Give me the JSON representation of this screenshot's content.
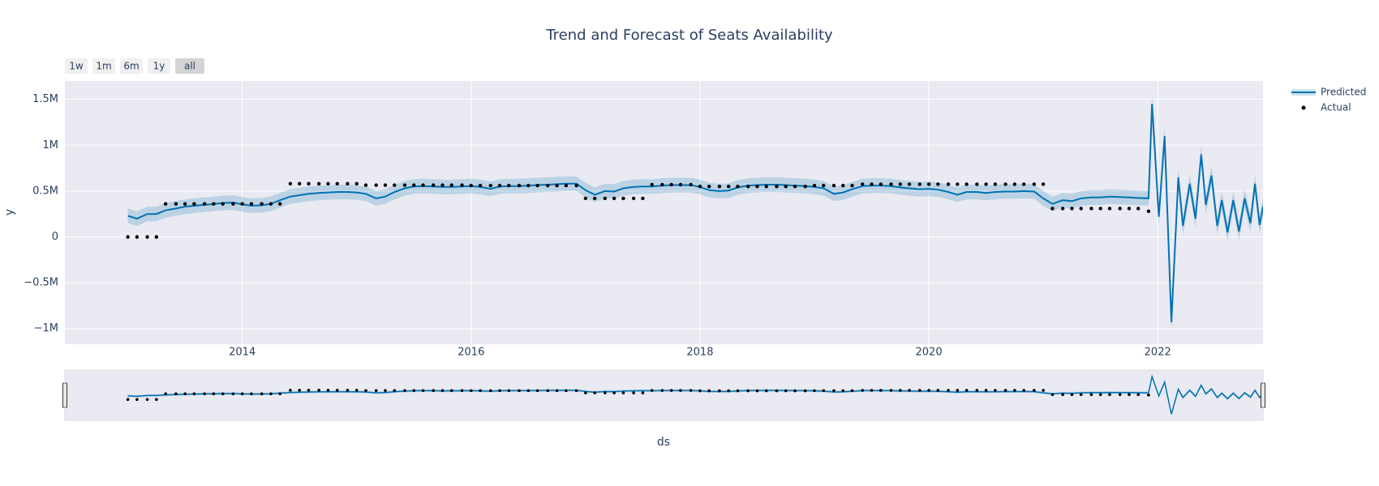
{
  "chart_data": {
    "type": "line",
    "title": "Trend and Forecast of Seats Availability",
    "xlabel": "ds",
    "ylabel": "y",
    "range_buttons": [
      "1w",
      "1m",
      "6m",
      "1y",
      "all"
    ],
    "selected_button": "all",
    "xlim": [
      2012.45,
      2022.92
    ],
    "xticks": [
      2014,
      2016,
      2018,
      2020,
      2022
    ],
    "ylim": [
      -1170000,
      1700000
    ],
    "yticks": [
      {
        "value": -1000000,
        "label": "−1M"
      },
      {
        "value": -500000,
        "label": "−0.5M"
      },
      0,
      {
        "value": 500000,
        "label": "0.5M"
      },
      {
        "value": 1000000,
        "label": "1M"
      },
      {
        "value": 1500000,
        "label": "1.5M"
      }
    ],
    "grid": true,
    "range_slider": true,
    "legend_position": "right",
    "series": [
      {
        "name": "Predicted",
        "kind": "line",
        "color": "#0072b2",
        "band_color": "rgba(0,114,178,0.2)",
        "x": [
          2013,
          2013.08,
          2013.17,
          2013.25,
          2013.33,
          2013.42,
          2013.5,
          2013.58,
          2013.67,
          2013.75,
          2013.83,
          2013.92,
          2014,
          2014.08,
          2014.17,
          2014.25,
          2014.33,
          2014.42,
          2014.5,
          2014.58,
          2014.67,
          2014.75,
          2014.83,
          2014.92,
          2015,
          2015.08,
          2015.17,
          2015.25,
          2015.33,
          2015.42,
          2015.5,
          2015.58,
          2015.67,
          2015.75,
          2015.83,
          2015.92,
          2016,
          2016.08,
          2016.17,
          2016.25,
          2016.33,
          2016.42,
          2016.5,
          2016.58,
          2016.67,
          2016.75,
          2016.83,
          2016.92,
          2017,
          2017.08,
          2017.17,
          2017.25,
          2017.33,
          2017.42,
          2017.5,
          2017.58,
          2017.67,
          2017.75,
          2017.83,
          2017.92,
          2018,
          2018.08,
          2018.17,
          2018.25,
          2018.33,
          2018.42,
          2018.5,
          2018.58,
          2018.67,
          2018.75,
          2018.83,
          2018.92,
          2019,
          2019.08,
          2019.17,
          2019.25,
          2019.33,
          2019.42,
          2019.5,
          2019.58,
          2019.67,
          2019.75,
          2019.83,
          2019.92,
          2020,
          2020.08,
          2020.17,
          2020.25,
          2020.33,
          2020.42,
          2020.5,
          2020.58,
          2020.67,
          2020.75,
          2020.83,
          2020.92,
          2021,
          2021.08,
          2021.17,
          2021.25,
          2021.33,
          2021.42,
          2021.5,
          2021.58,
          2021.67,
          2021.75,
          2021.83,
          2021.92,
          2021.95,
          2022.01,
          2022.06,
          2022.12,
          2022.18,
          2022.22,
          2022.28,
          2022.33,
          2022.38,
          2022.42,
          2022.47,
          2022.52,
          2022.56,
          2022.61,
          2022.66,
          2022.71,
          2022.76,
          2022.81,
          2022.85,
          2022.89,
          2022.92
        ],
        "values": [
          230000,
          200000,
          250000,
          250000,
          290000,
          310000,
          330000,
          340000,
          350000,
          360000,
          370000,
          375000,
          355000,
          340000,
          345000,
          360000,
          400000,
          440000,
          455000,
          470000,
          480000,
          485000,
          490000,
          490000,
          485000,
          470000,
          420000,
          440000,
          490000,
          530000,
          550000,
          555000,
          550000,
          545000,
          545000,
          550000,
          555000,
          545000,
          525000,
          550000,
          555000,
          555000,
          560000,
          565000,
          570000,
          575000,
          580000,
          580000,
          510000,
          460000,
          500000,
          495000,
          530000,
          545000,
          550000,
          550000,
          560000,
          565000,
          565000,
          565000,
          545000,
          510000,
          500000,
          505000,
          540000,
          560000,
          565000,
          570000,
          570000,
          565000,
          560000,
          555000,
          545000,
          530000,
          470000,
          485000,
          520000,
          555000,
          560000,
          560000,
          555000,
          540000,
          530000,
          520000,
          525000,
          515000,
          490000,
          460000,
          490000,
          490000,
          480000,
          490000,
          495000,
          495000,
          500000,
          495000,
          420000,
          360000,
          400000,
          390000,
          420000,
          430000,
          430000,
          440000,
          435000,
          430000,
          425000,
          420000,
          1450000,
          220000,
          1100000,
          -930000,
          650000,
          120000,
          580000,
          200000,
          900000,
          350000,
          670000,
          120000,
          400000,
          50000,
          400000,
          60000,
          420000,
          150000,
          580000,
          130000,
          330000
        ],
        "lower": [
          150000,
          120000,
          170000,
          170000,
          210000,
          230000,
          250000,
          260000,
          270000,
          280000,
          290000,
          295000,
          275000,
          260000,
          265000,
          280000,
          320000,
          360000,
          375000,
          390000,
          400000,
          405000,
          410000,
          410000,
          405000,
          390000,
          340000,
          360000,
          410000,
          450000,
          470000,
          475000,
          470000,
          465000,
          465000,
          470000,
          475000,
          465000,
          445000,
          470000,
          475000,
          475000,
          480000,
          485000,
          490000,
          495000,
          500000,
          500000,
          430000,
          380000,
          420000,
          415000,
          450000,
          465000,
          470000,
          470000,
          480000,
          485000,
          485000,
          485000,
          465000,
          430000,
          420000,
          425000,
          460000,
          480000,
          485000,
          490000,
          490000,
          485000,
          480000,
          475000,
          465000,
          450000,
          390000,
          405000,
          440000,
          475000,
          480000,
          480000,
          475000,
          460000,
          450000,
          440000,
          445000,
          435000,
          410000,
          380000,
          410000,
          410000,
          400000,
          410000,
          415000,
          415000,
          420000,
          415000,
          340000,
          280000,
          320000,
          310000,
          340000,
          350000,
          350000,
          360000,
          355000,
          350000,
          345000,
          340000,
          1350000,
          120000,
          1000000,
          -1030000,
          550000,
          20000,
          480000,
          100000,
          800000,
          250000,
          570000,
          20000,
          300000,
          -50000,
          300000,
          -40000,
          320000,
          50000,
          480000,
          30000,
          230000
        ],
        "upper": [
          310000,
          280000,
          330000,
          330000,
          370000,
          390000,
          410000,
          420000,
          430000,
          440000,
          450000,
          455000,
          435000,
          420000,
          425000,
          440000,
          480000,
          520000,
          535000,
          550000,
          560000,
          565000,
          570000,
          570000,
          565000,
          550000,
          500000,
          520000,
          570000,
          610000,
          630000,
          635000,
          630000,
          625000,
          625000,
          630000,
          635000,
          625000,
          605000,
          630000,
          635000,
          635000,
          640000,
          645000,
          650000,
          655000,
          660000,
          660000,
          590000,
          540000,
          580000,
          575000,
          610000,
          625000,
          630000,
          630000,
          640000,
          645000,
          645000,
          645000,
          625000,
          590000,
          580000,
          585000,
          620000,
          640000,
          645000,
          650000,
          650000,
          645000,
          640000,
          635000,
          625000,
          610000,
          550000,
          565000,
          600000,
          635000,
          640000,
          640000,
          635000,
          620000,
          610000,
          600000,
          605000,
          595000,
          570000,
          540000,
          570000,
          570000,
          560000,
          570000,
          575000,
          575000,
          580000,
          575000,
          500000,
          440000,
          480000,
          470000,
          500000,
          510000,
          510000,
          520000,
          515000,
          510000,
          505000,
          500000,
          1550000,
          320000,
          1200000,
          -830000,
          750000,
          220000,
          680000,
          300000,
          1000000,
          450000,
          770000,
          220000,
          500000,
          150000,
          500000,
          160000,
          520000,
          250000,
          680000,
          230000,
          430000
        ]
      },
      {
        "name": "Actual",
        "kind": "markers",
        "color": "#000000",
        "x": [
          2013,
          2013.08,
          2013.17,
          2013.25,
          2013.33,
          2013.42,
          2013.5,
          2013.58,
          2013.67,
          2013.75,
          2013.83,
          2013.92,
          2014,
          2014.08,
          2014.17,
          2014.25,
          2014.33,
          2014.42,
          2014.5,
          2014.58,
          2014.67,
          2014.75,
          2014.83,
          2014.92,
          2015,
          2015.08,
          2015.17,
          2015.25,
          2015.33,
          2015.42,
          2015.5,
          2015.58,
          2015.67,
          2015.75,
          2015.83,
          2015.92,
          2016,
          2016.08,
          2016.17,
          2016.25,
          2016.33,
          2016.42,
          2016.5,
          2016.58,
          2016.67,
          2016.75,
          2016.83,
          2016.92,
          2017,
          2017.08,
          2017.17,
          2017.25,
          2017.33,
          2017.42,
          2017.5,
          2017.58,
          2017.67,
          2017.75,
          2017.83,
          2017.92,
          2018,
          2018.08,
          2018.17,
          2018.25,
          2018.33,
          2018.42,
          2018.5,
          2018.58,
          2018.67,
          2018.75,
          2018.83,
          2018.92,
          2019,
          2019.08,
          2019.17,
          2019.25,
          2019.33,
          2019.42,
          2019.5,
          2019.58,
          2019.67,
          2019.75,
          2019.83,
          2019.92,
          2020,
          2020.08,
          2020.17,
          2020.25,
          2020.33,
          2020.42,
          2020.5,
          2020.58,
          2020.67,
          2020.75,
          2020.83,
          2020.92,
          2021,
          2021.08,
          2021.17,
          2021.25,
          2021.33,
          2021.42,
          2021.5,
          2021.58,
          2021.67,
          2021.75,
          2021.83,
          2021.92
        ],
        "values": [
          0,
          0,
          0,
          0,
          360000,
          360000,
          360000,
          360000,
          360000,
          360000,
          360000,
          360000,
          360000,
          360000,
          360000,
          360000,
          360000,
          580000,
          580000,
          580000,
          580000,
          580000,
          580000,
          580000,
          580000,
          565000,
          565000,
          565000,
          565000,
          565000,
          565000,
          565000,
          565000,
          565000,
          565000,
          565000,
          560000,
          560000,
          560000,
          560000,
          560000,
          560000,
          560000,
          560000,
          560000,
          560000,
          560000,
          560000,
          420000,
          420000,
          420000,
          420000,
          420000,
          420000,
          420000,
          570000,
          570000,
          570000,
          570000,
          570000,
          550000,
          550000,
          550000,
          550000,
          550000,
          550000,
          550000,
          550000,
          550000,
          550000,
          550000,
          550000,
          560000,
          560000,
          560000,
          560000,
          560000,
          575000,
          575000,
          575000,
          575000,
          575000,
          575000,
          575000,
          575000,
          575000,
          575000,
          575000,
          575000,
          575000,
          575000,
          575000,
          575000,
          575000,
          575000,
          575000,
          575000,
          310000,
          310000,
          310000,
          310000,
          310000,
          310000,
          310000,
          310000,
          310000,
          310000,
          280000
        ]
      }
    ]
  }
}
